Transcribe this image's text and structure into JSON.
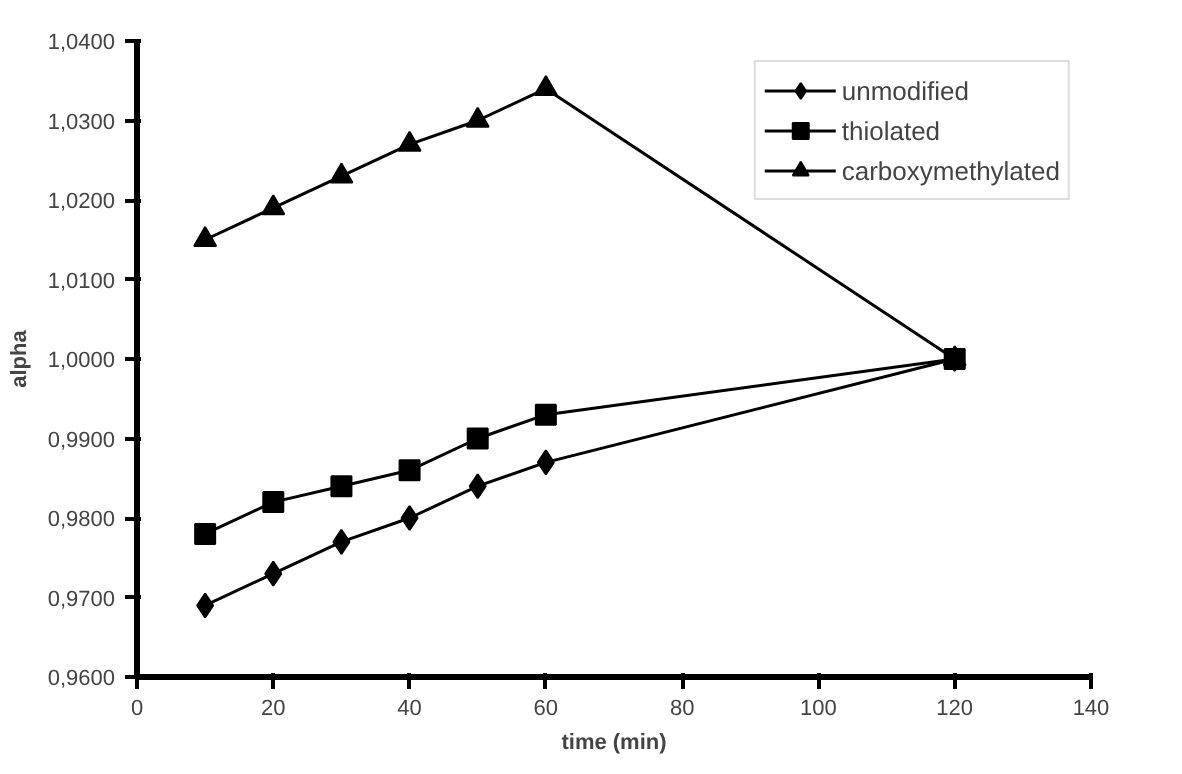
{
  "chart_data": {
    "type": "line",
    "xlabel": "time (min)",
    "ylabel": "alpha",
    "x": [
      10,
      20,
      30,
      40,
      50,
      60,
      120
    ],
    "series": [
      {
        "name": "unmodified",
        "color": "#000000",
        "marker": "diamond",
        "values": [
          0.969,
          0.973,
          0.977,
          0.98,
          0.984,
          0.987,
          1.0
        ]
      },
      {
        "name": "thiolated",
        "color": "#000000",
        "marker": "square",
        "values": [
          0.978,
          0.982,
          0.984,
          0.986,
          0.99,
          0.993,
          1.0
        ]
      },
      {
        "name": "carboxymethylated",
        "color": "#000000",
        "marker": "triangle",
        "values": [
          1.015,
          1.019,
          1.023,
          1.027,
          1.03,
          1.034,
          1.0
        ]
      }
    ],
    "xlim": [
      0,
      140
    ],
    "xticks": [
      0,
      20,
      40,
      60,
      80,
      100,
      120,
      140
    ],
    "ylim": [
      0.96,
      1.04
    ],
    "yticks": [
      {
        "value": 0.96,
        "label": "0,9600"
      },
      {
        "value": 0.97,
        "label": "0,9700"
      },
      {
        "value": 0.98,
        "label": "0,9800"
      },
      {
        "value": 0.99,
        "label": "0,9900"
      },
      {
        "value": 1.0,
        "label": "1,0000"
      },
      {
        "value": 1.01,
        "label": "1,0100"
      },
      {
        "value": 1.02,
        "label": "1,0200"
      },
      {
        "value": 1.03,
        "label": "1,0300"
      },
      {
        "value": 1.04,
        "label": "1,0400"
      }
    ],
    "grid": false,
    "legend": "top right",
    "line_style": "solid"
  }
}
